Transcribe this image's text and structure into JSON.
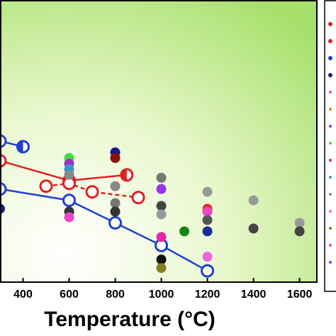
{
  "chart_data": {
    "type": "scatter",
    "x_label": "Temperature (°C)",
    "xlim": [
      300,
      1675
    ],
    "xticks": [
      400,
      600,
      800,
      1000,
      1200,
      1400,
      1600
    ],
    "ylim": [
      0,
      100
    ],
    "series": [
      {
        "marker": "open",
        "line": "solid",
        "color": "#1f3fd0",
        "x": [
          300,
          600,
          800,
          1000,
          1200
        ],
        "values": [
          33,
          29,
          21,
          13,
          4
        ]
      },
      {
        "marker": "half",
        "line": "solid",
        "color": "#1f3fd0",
        "x": [
          300,
          400
        ],
        "values": [
          50,
          48
        ]
      },
      {
        "marker": "half",
        "line": "solid",
        "color": "#e02020",
        "x": [
          300,
          600,
          850
        ],
        "values": [
          43,
          36,
          38
        ]
      },
      {
        "marker": "open",
        "line": "dashed",
        "color": "#e02020",
        "x": [
          500,
          600,
          700,
          900
        ],
        "values": [
          34,
          35,
          32,
          30
        ]
      },
      {
        "marker": "filled",
        "x": [
          300,
          600,
          600,
          600,
          600,
          600,
          600,
          800,
          800,
          800,
          800,
          800,
          1000,
          1000,
          1000,
          1000,
          1000,
          1000,
          1000,
          1100,
          1200,
          1200,
          1200,
          1200,
          1200,
          1200,
          1400,
          1400,
          1600,
          1600
        ],
        "values": [
          26,
          44,
          42,
          40,
          38,
          25,
          23,
          46,
          44,
          34,
          28,
          25,
          37,
          33,
          27,
          24,
          16,
          8,
          5,
          18,
          32,
          26,
          25,
          22,
          18,
          9,
          29,
          19,
          21,
          18
        ],
        "colors": [
          "#1a1a8c",
          "#44dd44",
          "#9933cc",
          "#3399cc",
          "#888888",
          "#333333",
          "#ee44cc",
          "#1a1a8c",
          "#8b1010",
          "#888888",
          "#777777",
          "#333333",
          "#777777",
          "#9933ee",
          "#444444",
          "#999999",
          "#ee22aa",
          "#111111",
          "#808020",
          "#118811",
          "#999999",
          "#ee2222",
          "#ee44cc",
          "#555555",
          "#1a2a99",
          "#ee66dd",
          "#999999",
          "#444444",
          "#999999",
          "#444444"
        ]
      }
    ]
  }
}
